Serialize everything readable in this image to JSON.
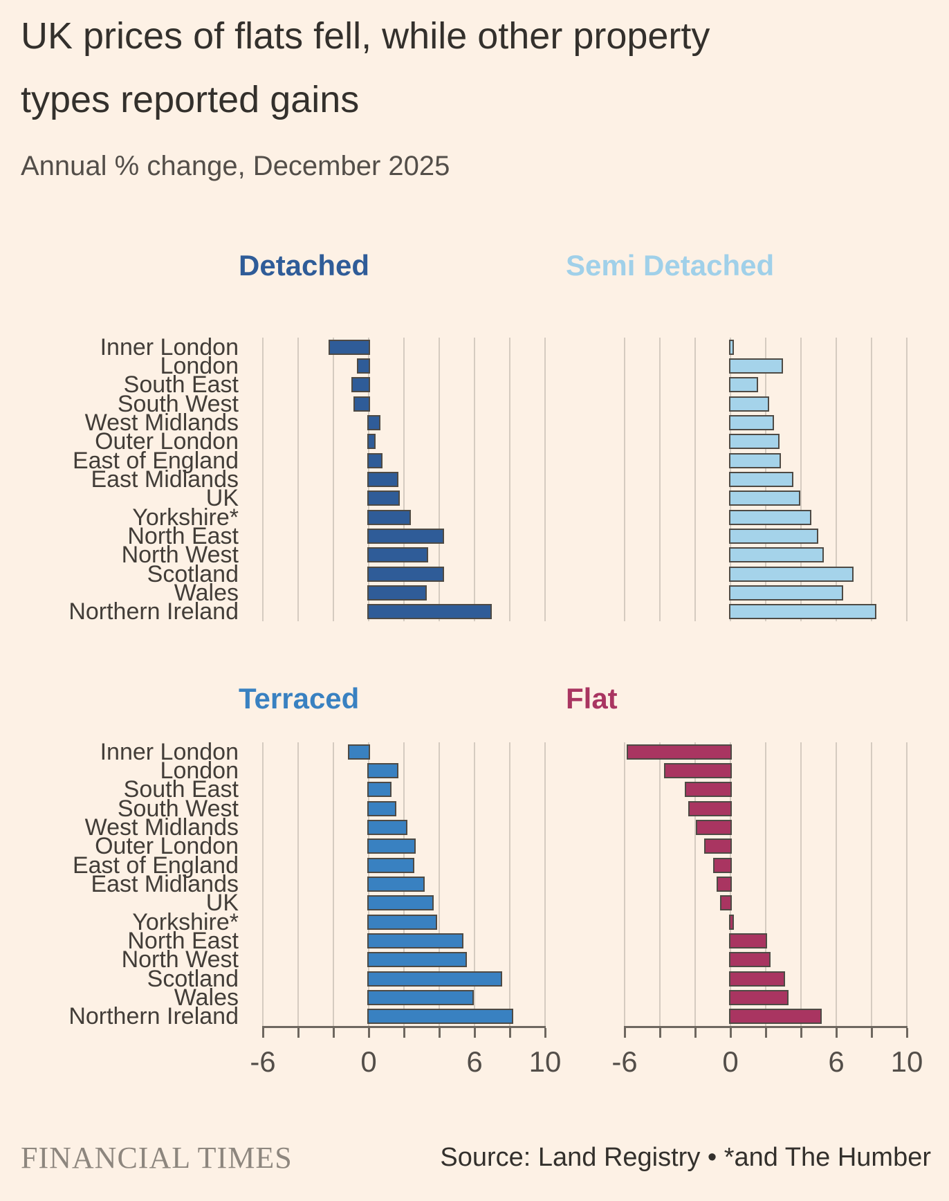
{
  "title_line1": "UK prices of flats fell, while other property",
  "title_line2": "types reported gains",
  "subtitle": "Annual % change, December 2025",
  "footer": {
    "brand": "FINANCIAL TIMES",
    "source": "Source: Land Registry • *and The Humber"
  },
  "colors": {
    "background": "#fdf1e5",
    "title_text": "#33302c",
    "subtitle_text": "#534e49",
    "label_text": "#423d38",
    "gridline": "#d5cbc0",
    "axis": "#6e675f",
    "bar_border": "#4e4a44",
    "detached": "#2f5c98",
    "semi_detached": "#a5d3ea",
    "terraced": "#3981c1",
    "flat": "#a93561"
  },
  "chart_data": {
    "type": "bar",
    "orientation": "horizontal",
    "layout": "2x2 small multiples",
    "categories": [
      "Inner London",
      "London",
      "South East",
      "South West",
      "West Midlands",
      "Outer London",
      "East of England",
      "East Midlands",
      "UK",
      "Yorkshire*",
      "North East",
      "North West",
      "Scotland",
      "Wales",
      "Northern Ireland"
    ],
    "series": [
      {
        "name": "Detached",
        "color": "#2f5c98",
        "title_color": "#2f5c98",
        "values": [
          -2.2,
          -0.6,
          -0.9,
          -0.8,
          0.6,
          0.3,
          0.7,
          1.6,
          1.7,
          2.3,
          4.2,
          3.3,
          4.2,
          3.2,
          6.9
        ]
      },
      {
        "name": "Semi Detached",
        "color": "#a5d3ea",
        "title_color": "#a0d0e9",
        "values": [
          0.1,
          2.9,
          1.5,
          2.1,
          2.4,
          2.7,
          2.8,
          3.5,
          3.9,
          4.5,
          4.9,
          5.2,
          6.9,
          6.3,
          8.2
        ]
      },
      {
        "name": "Terraced",
        "color": "#3981c1",
        "title_color": "#3981c1",
        "values": [
          -1.1,
          1.6,
          1.2,
          1.5,
          2.1,
          2.6,
          2.5,
          3.1,
          3.6,
          3.8,
          5.3,
          5.5,
          7.5,
          5.9,
          8.1
        ]
      },
      {
        "name": "Flat",
        "color": "#a93561",
        "title_color": "#a93561",
        "values": [
          -5.8,
          -3.7,
          -2.5,
          -2.3,
          -1.9,
          -1.4,
          -0.9,
          -0.7,
          -0.5,
          0.1,
          2.0,
          2.2,
          3.0,
          3.2,
          5.1
        ]
      }
    ],
    "xlim": [
      -6,
      10
    ],
    "gridline_step": 2,
    "xticks": [
      -6,
      0,
      6,
      10
    ],
    "xtick_labels": [
      "-6",
      "0",
      "6",
      "10"
    ],
    "grid": true,
    "legend": "none (panel titles act as series labels)"
  }
}
